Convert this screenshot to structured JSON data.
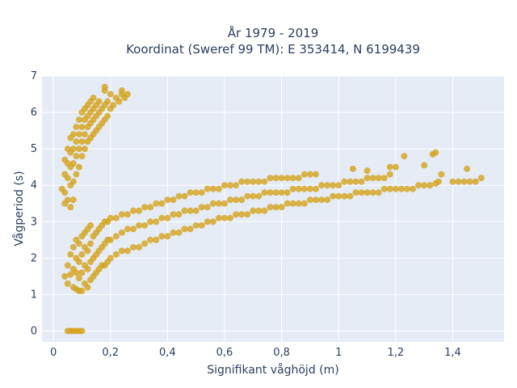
{
  "chart_data": {
    "type": "scatter",
    "title_line1": "År 1979 - 2019",
    "title_line2": "Koordinat (Sweref 99 TM): E 353414, N 6199439",
    "xlabel": "Signifikant våghöjd (m)",
    "ylabel": "Vågperiod (s)",
    "xlim": [
      -0.04,
      1.58
    ],
    "ylim": [
      -0.3,
      7.0
    ],
    "x_ticks": [
      {
        "value": 0,
        "label": "0"
      },
      {
        "value": 0.2,
        "label": "0,2"
      },
      {
        "value": 0.4,
        "label": "0,4"
      },
      {
        "value": 0.6,
        "label": "0,6"
      },
      {
        "value": 0.8,
        "label": "0,8"
      },
      {
        "value": 1.0,
        "label": "1"
      },
      {
        "value": 1.2,
        "label": "1,2"
      },
      {
        "value": 1.4,
        "label": "1,4"
      }
    ],
    "y_ticks": [
      {
        "value": 0,
        "label": "0"
      },
      {
        "value": 1,
        "label": "1"
      },
      {
        "value": 2,
        "label": "2"
      },
      {
        "value": 3,
        "label": "3"
      },
      {
        "value": 4,
        "label": "4"
      },
      {
        "value": 5,
        "label": "5"
      },
      {
        "value": 6,
        "label": "6"
      },
      {
        "value": 7,
        "label": "7"
      }
    ],
    "grid": true,
    "colors": {
      "marker": "#d4a21c",
      "plot_background": "#e5ecf6",
      "grid": "#ffffff",
      "text": "#2a3f5f"
    },
    "series": [
      {
        "values": [
          [
            0.05,
            0
          ],
          [
            0.06,
            0
          ],
          [
            0.07,
            0
          ],
          [
            0.08,
            0
          ],
          [
            0.09,
            0
          ],
          [
            0.1,
            0
          ],
          [
            0.04,
            1.5
          ],
          [
            0.05,
            1.3
          ],
          [
            0.05,
            1.8
          ],
          [
            0.06,
            1.55
          ],
          [
            0.06,
            2.1
          ],
          [
            0.07,
            1.2
          ],
          [
            0.07,
            1.7
          ],
          [
            0.07,
            2.3
          ],
          [
            0.08,
            1.15
          ],
          [
            0.08,
            1.6
          ],
          [
            0.08,
            2.0
          ],
          [
            0.08,
            2.5
          ],
          [
            0.09,
            1.1
          ],
          [
            0.09,
            1.45
          ],
          [
            0.09,
            1.9
          ],
          [
            0.09,
            2.4
          ],
          [
            0.1,
            1.1
          ],
          [
            0.1,
            1.6
          ],
          [
            0.1,
            2.1
          ],
          [
            0.1,
            2.6
          ],
          [
            0.11,
            1.3
          ],
          [
            0.11,
            1.8
          ],
          [
            0.11,
            2.3
          ],
          [
            0.11,
            2.7
          ],
          [
            0.12,
            1.2
          ],
          [
            0.12,
            1.7
          ],
          [
            0.12,
            2.2
          ],
          [
            0.12,
            2.8
          ],
          [
            0.13,
            1.4
          ],
          [
            0.13,
            1.9
          ],
          [
            0.13,
            2.4
          ],
          [
            0.13,
            2.9
          ],
          [
            0.14,
            1.5
          ],
          [
            0.14,
            2.0
          ],
          [
            0.14,
            2.6
          ],
          [
            0.15,
            1.6
          ],
          [
            0.15,
            2.1
          ],
          [
            0.15,
            2.7
          ],
          [
            0.16,
            1.7
          ],
          [
            0.16,
            2.2
          ],
          [
            0.16,
            2.8
          ],
          [
            0.17,
            1.8
          ],
          [
            0.17,
            2.3
          ],
          [
            0.17,
            2.9
          ],
          [
            0.18,
            1.8
          ],
          [
            0.18,
            2.4
          ],
          [
            0.18,
            3.0
          ],
          [
            0.19,
            1.9
          ],
          [
            0.19,
            2.5
          ],
          [
            0.19,
            3.0
          ],
          [
            0.2,
            2.0
          ],
          [
            0.2,
            2.5
          ],
          [
            0.2,
            3.1
          ],
          [
            0.22,
            2.1
          ],
          [
            0.22,
            2.6
          ],
          [
            0.22,
            3.1
          ],
          [
            0.24,
            2.2
          ],
          [
            0.24,
            2.7
          ],
          [
            0.24,
            3.2
          ],
          [
            0.26,
            2.2
          ],
          [
            0.26,
            2.8
          ],
          [
            0.26,
            3.2
          ],
          [
            0.28,
            2.3
          ],
          [
            0.28,
            2.8
          ],
          [
            0.28,
            3.3
          ],
          [
            0.3,
            2.3
          ],
          [
            0.3,
            2.9
          ],
          [
            0.3,
            3.3
          ],
          [
            0.32,
            2.4
          ],
          [
            0.32,
            2.9
          ],
          [
            0.32,
            3.4
          ],
          [
            0.34,
            2.5
          ],
          [
            0.34,
            3.0
          ],
          [
            0.34,
            3.4
          ],
          [
            0.36,
            2.5
          ],
          [
            0.36,
            3.0
          ],
          [
            0.36,
            3.5
          ],
          [
            0.38,
            2.6
          ],
          [
            0.38,
            3.1
          ],
          [
            0.38,
            3.5
          ],
          [
            0.4,
            2.6
          ],
          [
            0.4,
            3.1
          ],
          [
            0.4,
            3.6
          ],
          [
            0.42,
            2.7
          ],
          [
            0.42,
            3.2
          ],
          [
            0.42,
            3.6
          ],
          [
            0.44,
            2.7
          ],
          [
            0.44,
            3.2
          ],
          [
            0.44,
            3.7
          ],
          [
            0.46,
            2.8
          ],
          [
            0.46,
            3.3
          ],
          [
            0.46,
            3.7
          ],
          [
            0.48,
            2.8
          ],
          [
            0.48,
            3.3
          ],
          [
            0.48,
            3.8
          ],
          [
            0.5,
            2.9
          ],
          [
            0.5,
            3.3
          ],
          [
            0.5,
            3.8
          ],
          [
            0.52,
            2.9
          ],
          [
            0.52,
            3.4
          ],
          [
            0.52,
            3.8
          ],
          [
            0.54,
            3.0
          ],
          [
            0.54,
            3.4
          ],
          [
            0.54,
            3.9
          ],
          [
            0.56,
            3.0
          ],
          [
            0.56,
            3.5
          ],
          [
            0.56,
            3.9
          ],
          [
            0.58,
            3.1
          ],
          [
            0.58,
            3.5
          ],
          [
            0.58,
            3.9
          ],
          [
            0.6,
            3.1
          ],
          [
            0.6,
            3.5
          ],
          [
            0.6,
            4.0
          ],
          [
            0.62,
            3.1
          ],
          [
            0.62,
            3.6
          ],
          [
            0.62,
            4.0
          ],
          [
            0.64,
            3.2
          ],
          [
            0.64,
            3.6
          ],
          [
            0.64,
            4.0
          ],
          [
            0.66,
            3.2
          ],
          [
            0.66,
            3.6
          ],
          [
            0.66,
            4.1
          ],
          [
            0.68,
            3.2
          ],
          [
            0.68,
            3.7
          ],
          [
            0.68,
            4.1
          ],
          [
            0.7,
            3.3
          ],
          [
            0.7,
            3.7
          ],
          [
            0.7,
            4.1
          ],
          [
            0.72,
            3.3
          ],
          [
            0.72,
            3.7
          ],
          [
            0.72,
            4.1
          ],
          [
            0.74,
            3.3
          ],
          [
            0.74,
            3.8
          ],
          [
            0.74,
            4.1
          ],
          [
            0.76,
            3.4
          ],
          [
            0.76,
            3.8
          ],
          [
            0.76,
            4.2
          ],
          [
            0.78,
            3.4
          ],
          [
            0.78,
            3.8
          ],
          [
            0.78,
            4.2
          ],
          [
            0.8,
            3.4
          ],
          [
            0.8,
            3.8
          ],
          [
            0.8,
            4.2
          ],
          [
            0.82,
            3.5
          ],
          [
            0.82,
            3.8
          ],
          [
            0.82,
            4.2
          ],
          [
            0.84,
            3.5
          ],
          [
            0.84,
            3.9
          ],
          [
            0.84,
            4.2
          ],
          [
            0.86,
            3.5
          ],
          [
            0.86,
            3.9
          ],
          [
            0.86,
            4.2
          ],
          [
            0.88,
            3.5
          ],
          [
            0.88,
            3.9
          ],
          [
            0.88,
            4.3
          ],
          [
            0.9,
            3.6
          ],
          [
            0.9,
            3.9
          ],
          [
            0.9,
            4.3
          ],
          [
            0.92,
            3.6
          ],
          [
            0.92,
            3.9
          ],
          [
            0.92,
            4.3
          ],
          [
            0.94,
            3.6
          ],
          [
            0.94,
            4.0
          ],
          [
            0.96,
            3.6
          ],
          [
            0.96,
            4.0
          ],
          [
            0.98,
            3.7
          ],
          [
            0.98,
            4.0
          ],
          [
            1.0,
            3.7
          ],
          [
            1.0,
            4.0
          ],
          [
            1.02,
            3.7
          ],
          [
            1.02,
            4.1
          ],
          [
            1.04,
            3.7
          ],
          [
            1.04,
            4.1
          ],
          [
            1.06,
            3.8
          ],
          [
            1.06,
            4.1
          ],
          [
            1.08,
            3.8
          ],
          [
            1.08,
            4.1
          ],
          [
            1.1,
            3.8
          ],
          [
            1.1,
            4.2
          ],
          [
            1.12,
            3.8
          ],
          [
            1.12,
            4.2
          ],
          [
            1.14,
            3.8
          ],
          [
            1.14,
            4.2
          ],
          [
            1.16,
            3.9
          ],
          [
            1.16,
            4.2
          ],
          [
            1.18,
            3.9
          ],
          [
            1.18,
            4.3
          ],
          [
            1.2,
            3.9
          ],
          [
            1.22,
            3.9
          ],
          [
            1.24,
            3.9
          ],
          [
            1.26,
            3.9
          ],
          [
            1.28,
            4.0
          ],
          [
            1.3,
            4.0
          ],
          [
            1.32,
            4.0
          ],
          [
            1.34,
            4.05
          ],
          [
            1.35,
            4.1
          ],
          [
            1.4,
            4.1
          ],
          [
            1.42,
            4.1
          ],
          [
            1.44,
            4.1
          ],
          [
            1.46,
            4.1
          ],
          [
            1.48,
            4.1
          ],
          [
            1.5,
            4.2
          ],
          [
            1.45,
            4.45
          ],
          [
            1.33,
            4.85
          ],
          [
            1.34,
            4.9
          ],
          [
            1.23,
            4.8
          ],
          [
            1.05,
            4.45
          ],
          [
            1.1,
            4.4
          ],
          [
            1.18,
            4.5
          ],
          [
            1.2,
            4.5
          ],
          [
            1.3,
            4.55
          ],
          [
            1.36,
            4.3
          ],
          [
            0.04,
            3.8
          ],
          [
            0.04,
            4.3
          ],
          [
            0.04,
            4.7
          ],
          [
            0.05,
            3.6
          ],
          [
            0.05,
            4.2
          ],
          [
            0.05,
            4.6
          ],
          [
            0.05,
            5.0
          ],
          [
            0.06,
            4.0
          ],
          [
            0.06,
            4.5
          ],
          [
            0.06,
            4.9
          ],
          [
            0.06,
            5.3
          ],
          [
            0.07,
            4.1
          ],
          [
            0.07,
            4.6
          ],
          [
            0.07,
            5.0
          ],
          [
            0.07,
            5.4
          ],
          [
            0.08,
            4.3
          ],
          [
            0.08,
            4.8
          ],
          [
            0.08,
            5.2
          ],
          [
            0.08,
            5.6
          ],
          [
            0.09,
            4.5
          ],
          [
            0.09,
            5.0
          ],
          [
            0.09,
            5.4
          ],
          [
            0.09,
            5.8
          ],
          [
            0.1,
            4.8
          ],
          [
            0.1,
            5.2
          ],
          [
            0.1,
            5.6
          ],
          [
            0.1,
            6.0
          ],
          [
            0.11,
            5.0
          ],
          [
            0.11,
            5.4
          ],
          [
            0.11,
            5.8
          ],
          [
            0.11,
            6.1
          ],
          [
            0.12,
            5.2
          ],
          [
            0.12,
            5.6
          ],
          [
            0.12,
            5.9
          ],
          [
            0.12,
            6.2
          ],
          [
            0.13,
            5.3
          ],
          [
            0.13,
            5.7
          ],
          [
            0.13,
            6.0
          ],
          [
            0.13,
            6.3
          ],
          [
            0.14,
            5.4
          ],
          [
            0.14,
            5.8
          ],
          [
            0.14,
            6.1
          ],
          [
            0.14,
            6.4
          ],
          [
            0.15,
            5.5
          ],
          [
            0.15,
            5.9
          ],
          [
            0.15,
            6.2
          ],
          [
            0.16,
            5.6
          ],
          [
            0.16,
            6.0
          ],
          [
            0.16,
            6.3
          ],
          [
            0.17,
            5.7
          ],
          [
            0.17,
            6.1
          ],
          [
            0.18,
            5.8
          ],
          [
            0.18,
            6.2
          ],
          [
            0.19,
            5.9
          ],
          [
            0.19,
            6.3
          ],
          [
            0.2,
            6.1
          ],
          [
            0.2,
            6.5
          ],
          [
            0.21,
            6.2
          ],
          [
            0.22,
            6.4
          ],
          [
            0.23,
            6.3
          ],
          [
            0.24,
            6.5
          ],
          [
            0.25,
            6.4
          ],
          [
            0.26,
            6.5
          ],
          [
            0.24,
            6.6
          ],
          [
            0.18,
            6.6
          ],
          [
            0.18,
            6.7
          ],
          [
            0.04,
            3.5
          ],
          [
            0.06,
            3.4
          ],
          [
            0.07,
            3.6
          ],
          [
            0.03,
            3.9
          ]
        ]
      }
    ]
  }
}
